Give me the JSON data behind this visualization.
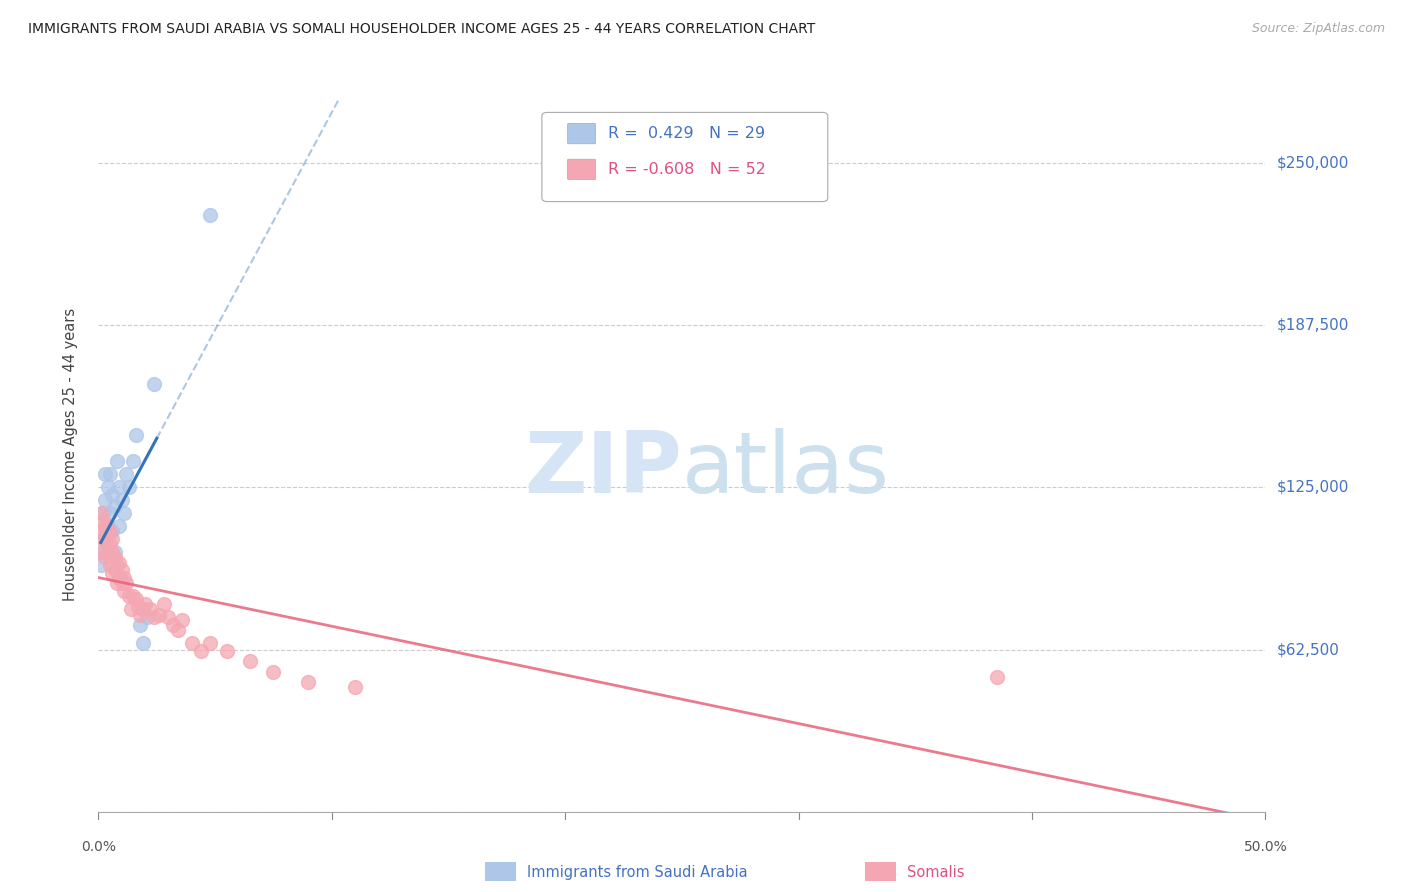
{
  "title": "IMMIGRANTS FROM SAUDI ARABIA VS SOMALI HOUSEHOLDER INCOME AGES 25 - 44 YEARS CORRELATION CHART",
  "source": "Source: ZipAtlas.com",
  "ylabel": "Householder Income Ages 25 - 44 years",
  "xlim": [
    0.0,
    0.5
  ],
  "ylim": [
    0,
    275000
  ],
  "yticks": [
    0,
    62500,
    125000,
    187500,
    250000
  ],
  "ytick_labels": [
    "",
    "$62,500",
    "$125,000",
    "$187,500",
    "$250,000"
  ],
  "xticks": [
    0.0,
    0.1,
    0.2,
    0.3,
    0.4,
    0.5
  ],
  "xtick_labels": [
    "0.0%",
    "",
    "",
    "",
    "",
    "50.0%"
  ],
  "saudi_color": "#aec6e8",
  "somali_color": "#f4a7b2",
  "saudi_line_color": "#3473b7",
  "somali_line_color": "#e8637a",
  "background_color": "#ffffff",
  "grid_color": "#cccccc",
  "legend_R_saudi": "R =  0.429",
  "legend_N_saudi": "N = 29",
  "legend_R_somali": "R = -0.608",
  "legend_N_somali": "N = 52",
  "saudi_x": [
    0.001,
    0.001,
    0.002,
    0.002,
    0.003,
    0.003,
    0.003,
    0.004,
    0.004,
    0.005,
    0.005,
    0.006,
    0.006,
    0.007,
    0.007,
    0.008,
    0.009,
    0.009,
    0.01,
    0.011,
    0.012,
    0.013,
    0.015,
    0.016,
    0.018,
    0.019,
    0.021,
    0.024,
    0.048
  ],
  "saudi_y": [
    95000,
    108000,
    100000,
    115000,
    105000,
    120000,
    130000,
    110000,
    125000,
    115000,
    130000,
    108000,
    122000,
    100000,
    118000,
    135000,
    110000,
    125000,
    120000,
    115000,
    130000,
    125000,
    135000,
    145000,
    72000,
    65000,
    75000,
    165000,
    230000
  ],
  "somali_x": [
    0.001,
    0.001,
    0.002,
    0.002,
    0.002,
    0.003,
    0.003,
    0.003,
    0.004,
    0.004,
    0.005,
    0.005,
    0.005,
    0.006,
    0.006,
    0.006,
    0.007,
    0.007,
    0.008,
    0.008,
    0.009,
    0.009,
    0.01,
    0.01,
    0.011,
    0.011,
    0.012,
    0.013,
    0.014,
    0.015,
    0.016,
    0.017,
    0.018,
    0.019,
    0.02,
    0.022,
    0.024,
    0.026,
    0.028,
    0.03,
    0.032,
    0.034,
    0.036,
    0.04,
    0.044,
    0.048,
    0.055,
    0.065,
    0.075,
    0.09,
    0.11,
    0.385
  ],
  "somali_y": [
    105000,
    115000,
    100000,
    112000,
    108000,
    98000,
    105000,
    110000,
    100000,
    108000,
    95000,
    103000,
    108000,
    92000,
    100000,
    105000,
    93000,
    98000,
    88000,
    95000,
    90000,
    96000,
    88000,
    93000,
    85000,
    90000,
    88000,
    83000,
    78000,
    83000,
    82000,
    79000,
    76000,
    78000,
    80000,
    78000,
    75000,
    76000,
    80000,
    75000,
    72000,
    70000,
    74000,
    65000,
    62000,
    65000,
    62000,
    58000,
    54000,
    50000,
    48000,
    52000
  ]
}
